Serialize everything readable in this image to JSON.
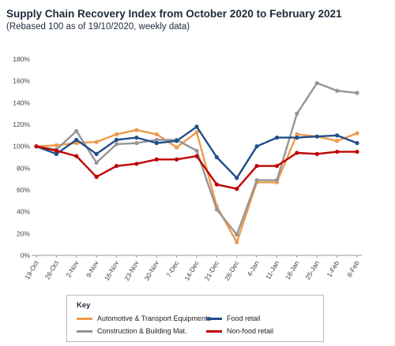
{
  "header": {
    "title": "Supply Chain Recovery Index from October 2020 to February 2021",
    "subtitle": "(Rebased 100 as of 19/10/2020, weekly data)"
  },
  "legend": {
    "title": "Key",
    "items": [
      {
        "label": "Automotive & Transport Equipments",
        "color": "#f0994a"
      },
      {
        "label": "Food retail",
        "color": "#1f4e8c"
      },
      {
        "label": "Construction & Building Mat.",
        "color": "#959595"
      },
      {
        "label": "Non-food retail",
        "color": "#c00000"
      }
    ]
  },
  "chart_data": {
    "type": "line",
    "title": "Supply Chain Recovery Index from October 2020 to February 2021",
    "subtitle": "(Rebased 100 as of 19/10/2020, weekly data)",
    "xlabel": "",
    "ylabel": "",
    "x": [
      "19-Oct",
      "26-Oct",
      "2-Nov",
      "9-Nov",
      "16-Nov",
      "23-Nov",
      "30-Nov",
      "7-Dec",
      "14-Dec",
      "21-Dec",
      "28-Dec",
      "4-Jan",
      "11-Jan",
      "18-Jan",
      "25-Jan",
      "1-Feb",
      "8-Feb"
    ],
    "yticks": [
      "0%",
      "20%",
      "40%",
      "60%",
      "80%",
      "100%",
      "120%",
      "140%",
      "160%",
      "180%"
    ],
    "ylim": [
      0,
      180
    ],
    "grid": false,
    "legend_position": "bottom",
    "series": [
      {
        "name": "Automotive & Transport Equipments",
        "color": "#f0994a",
        "values": [
          100,
          101,
          103,
          104,
          111,
          115,
          111,
          99,
          113,
          45,
          12,
          67,
          67,
          111,
          109,
          105,
          112
        ]
      },
      {
        "name": "Construction & Building Mat.",
        "color": "#959595",
        "values": [
          100,
          97,
          114,
          85,
          102,
          103,
          106,
          106,
          96,
          42,
          19,
          69,
          69,
          130,
          158,
          151,
          149
        ]
      },
      {
        "name": "Food retail",
        "color": "#1f4e8c",
        "values": [
          100,
          93,
          106,
          93,
          106,
          108,
          103,
          105,
          118,
          90,
          71,
          100,
          108,
          108,
          109,
          110,
          103
        ]
      },
      {
        "name": "Non-food retail",
        "color": "#c00000",
        "values": [
          100,
          96,
          91,
          72,
          82,
          84,
          88,
          88,
          91,
          65,
          61,
          82,
          82,
          94,
          93,
          95,
          95
        ]
      }
    ]
  }
}
